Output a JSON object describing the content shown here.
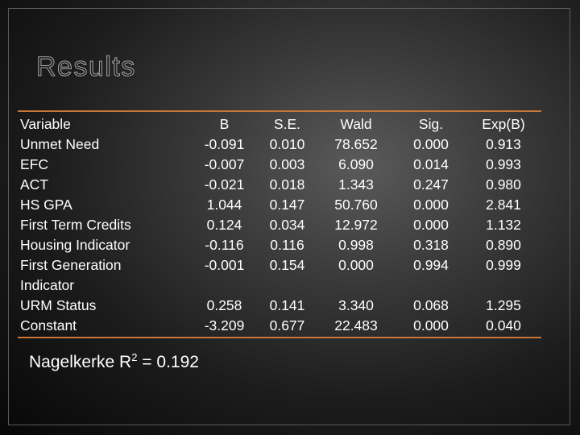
{
  "title": "Results",
  "columns": [
    "Variable",
    "B",
    "S.E.",
    "Wald",
    "Sig.",
    "Exp(B)"
  ],
  "rows": [
    {
      "variable": "Unmet Need",
      "values": [
        "-0.091",
        "0.010",
        "78.652",
        "0.000",
        "0.913"
      ]
    },
    {
      "variable": "EFC",
      "values": [
        "-0.007",
        "0.003",
        "6.090",
        "0.014",
        "0.993"
      ]
    },
    {
      "variable": "ACT",
      "values": [
        "-0.021",
        "0.018",
        "1.343",
        "0.247",
        "0.980"
      ]
    },
    {
      "variable": "HS GPA",
      "values": [
        "1.044",
        "0.147",
        "50.760",
        "0.000",
        "2.841"
      ]
    },
    {
      "variable": "First Term Credits",
      "values": [
        "0.124",
        "0.034",
        "12.972",
        "0.000",
        "1.132"
      ]
    },
    {
      "variable": "Housing Indicator",
      "values": [
        "-0.116",
        "0.116",
        "0.998",
        "0.318",
        "0.890"
      ]
    },
    {
      "variable": "First Generation Indicator",
      "values": [
        "-0.001",
        "0.154",
        "0.000",
        "0.994",
        "0.999"
      ]
    },
    {
      "variable": "URM Status",
      "values": [
        "0.258",
        "0.141",
        "3.340",
        "0.068",
        "1.295"
      ]
    },
    {
      "variable": "Constant",
      "values": [
        "-3.209",
        "0.677",
        "22.483",
        "0.000",
        "0.040"
      ]
    }
  ],
  "footnote": {
    "prefix": "Nagelkerke R",
    "superscript": "2",
    "suffix": " = 0.192"
  },
  "colors": {
    "rule": "#c8773a",
    "text": "#ffffff"
  }
}
